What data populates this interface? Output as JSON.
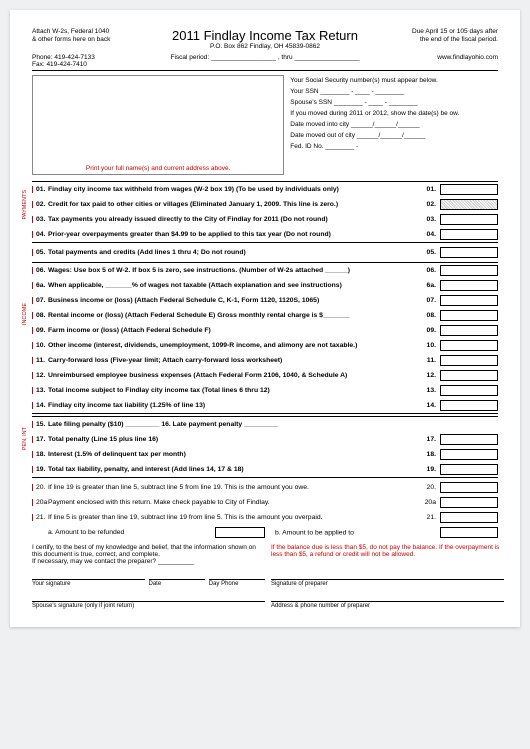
{
  "header": {
    "attach": "Attach W-2s, Federal 1040",
    "attach2": "& other forms here on back",
    "phone": "Phone: 419-424-7133",
    "fax": "Fax: 419-424-7410",
    "title": "2011 Findlay Income Tax Return",
    "pobox": "P.O. Box 862     Findlay, OH 45839-0862",
    "due": "Due April 15 or 105 days after",
    "due2": "the end of the fiscal period.",
    "fiscal": "Fiscal period: __________________ , thru __________________",
    "url": "www.findlayohio.com"
  },
  "ssn": {
    "l1": "Your Social Security number(s) must appear below.",
    "l2": "Your SSN       ________ - ____ - ________",
    "l3": "Spouse's SSN ________ - ____ - ________",
    "l4": "If you moved during 2011 or 2012, show the date(s) be ow.",
    "l5": "Date moved into city            ______/______/______",
    "l6": "Date moved out of city         ______/______/______",
    "l7": "Fed. ID No. ________ - "
  },
  "namebox_caption": "Print your full name(s) and current address above.",
  "lines": [
    {
      "n": "01.",
      "d": "Findlay city income tax withheld from wages (W-2 box 19) (To be used by individuals only)",
      "rn": "01.",
      "b": true
    },
    {
      "n": "02.",
      "d": "Credit for tax paid to other cities or villages (Eliminated January 1, 2009. This line is zero.)",
      "rn": "02.",
      "b": true,
      "shaded": true
    },
    {
      "n": "03.",
      "d": "Tax payments you already issued directly to the City of Findlay for 2011 (Do not round)",
      "rn": "03.",
      "b": true
    },
    {
      "n": "04.",
      "d": "Prior-year overpayments greater than $4.99 to be applied to this tax year (Do not round)",
      "rn": "04.",
      "b": true
    }
  ],
  "line05": {
    "n": "05.",
    "d": "Total payments and credits (Add lines 1 thru 4; Do not round)",
    "rn": "05."
  },
  "income": [
    {
      "n": "06.",
      "d": "Wages: Use box 5 of W-2. If box 5 is zero, see instructions.        (Number of W-2s attached ______)",
      "rn": "06.",
      "b": true
    },
    {
      "n": "6a.",
      "d": "When applicable, _______% of wages not taxable (Attach explanation and see instructions)",
      "rn": "6a.",
      "b": true
    },
    {
      "n": "07.",
      "d": "Business income or (loss) (Attach Federal Schedule C, K-1, Form 1120, 1120S, 1065)",
      "rn": "07.",
      "b": true
    },
    {
      "n": "08.",
      "d": "Rental income or (loss) (Attach Federal Schedule E)    Gross monthly rental charge is $_______",
      "rn": "08.",
      "b": true
    },
    {
      "n": "09.",
      "d": "Farm income or (loss) (Attach Federal Schedule F)",
      "rn": "09.",
      "b": true
    },
    {
      "n": "10.",
      "d": "Other income (interest, dividends, unemployment, 1099-R income, and alimony are not taxable.)",
      "rn": "10.",
      "b": true
    },
    {
      "n": "11.",
      "d": "Carry-forward loss (Five-year limit; Attach carry-forward loss worksheet)",
      "rn": "11.",
      "b": true
    },
    {
      "n": "12.",
      "d": "Unreimbursed employee business expenses (Attach Federal Form 2106, 1040, & Schedule A)",
      "rn": "12.",
      "b": true
    },
    {
      "n": "13.",
      "d": "Total income subject to Findlay city income tax (Total lines 6 thru 12)",
      "rn": "13.",
      "b": true
    },
    {
      "n": "14.",
      "d": "Findlay city income tax liability (1.25% of line 13)",
      "rn": "14.",
      "b": true
    }
  ],
  "pen": [
    {
      "n": "15.",
      "d": "Late filing penalty ($10) _________               16.   Late payment penalty     _________",
      "rn": "",
      "b": true,
      "nobox": true
    },
    {
      "n": "17.",
      "d": "Total penalty (Line 15 plus line 16)",
      "rn": "17.",
      "b": true
    },
    {
      "n": "18.",
      "d": "Interest (1.5% of delinquent tax per month)",
      "rn": "18.",
      "b": true
    },
    {
      "n": "19.",
      "d": "Total tax liability, penalty, and interest (Add lines 14, 17 & 18)",
      "rn": "19.",
      "b": true
    }
  ],
  "bottom": [
    {
      "n": "20.",
      "d": "If line 19 is greater than line 5, subtract line 5 from line 19. This is the amount you owe.",
      "rn": "20."
    },
    {
      "n": "20a",
      "d": "Payment enclosed with this return. Make check payable to City of Findlay.",
      "rn": "20a"
    },
    {
      "n": "21.",
      "d": "If line 5 is greater than line 19, subtract line 19 from line 5. This is the amount you overpaid.",
      "rn": "21."
    }
  ],
  "refund_row": {
    "a": "a. Amount to be refunded",
    "b": "b. Amount to be applied to"
  },
  "cert": "I certify, to the best of my knowledge and belief, that the information shown on this document is true, correct, and complete.\nIf necessary, may we contact the preparer? __________",
  "warn": "If the balance due is less than $5, do not pay the balance. If the overpayment is less than $5, a refund or credit will not be allowed.",
  "sigs": {
    "yoursig": "Your signature",
    "date": "Date",
    "dayphone": "Day Phone",
    "prepsig": "Signature of preparer",
    "spouse": "Spouse's signature (only if joint return)",
    "prepaddr": "Address & phone number of preparer"
  },
  "sidelabels": {
    "payments": "PAYMENTS",
    "income": "INCOME",
    "pen": "PEN, INT"
  }
}
